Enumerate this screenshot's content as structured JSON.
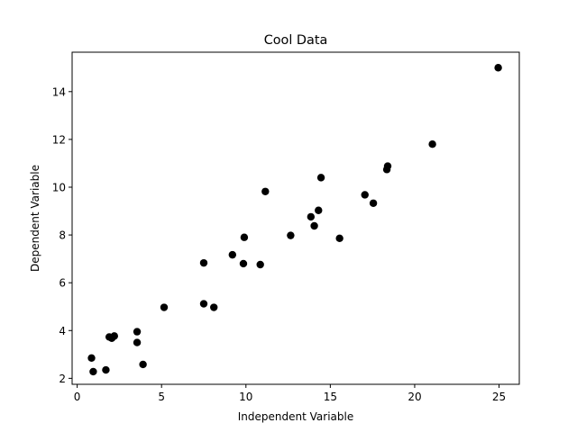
{
  "chart_data": {
    "type": "scatter",
    "title": "Cool Data",
    "xlabel": "Independent Variable",
    "ylabel": "Dependent Variable",
    "xlim": [
      -0.3,
      26.2
    ],
    "ylim": [
      1.75,
      15.65
    ],
    "xticks": [
      0,
      5,
      10,
      15,
      20,
      25
    ],
    "yticks": [
      2,
      4,
      6,
      8,
      10,
      12,
      14
    ],
    "grid": false,
    "marker_color": "#000000",
    "points": [
      {
        "x": 0.85,
        "y": 2.85
      },
      {
        "x": 0.95,
        "y": 2.28
      },
      {
        "x": 1.7,
        "y": 2.35
      },
      {
        "x": 1.9,
        "y": 3.73
      },
      {
        "x": 2.05,
        "y": 3.68
      },
      {
        "x": 2.2,
        "y": 3.77
      },
      {
        "x": 3.55,
        "y": 3.95
      },
      {
        "x": 3.55,
        "y": 3.5
      },
      {
        "x": 3.9,
        "y": 2.58
      },
      {
        "x": 5.15,
        "y": 4.97
      },
      {
        "x": 7.5,
        "y": 6.83
      },
      {
        "x": 7.5,
        "y": 5.12
      },
      {
        "x": 8.1,
        "y": 4.97
      },
      {
        "x": 9.2,
        "y": 7.17
      },
      {
        "x": 9.85,
        "y": 6.8
      },
      {
        "x": 9.9,
        "y": 7.9
      },
      {
        "x": 10.85,
        "y": 6.76
      },
      {
        "x": 11.15,
        "y": 9.82
      },
      {
        "x": 12.65,
        "y": 7.98
      },
      {
        "x": 13.85,
        "y": 8.76
      },
      {
        "x": 14.05,
        "y": 8.38
      },
      {
        "x": 14.3,
        "y": 9.03
      },
      {
        "x": 14.45,
        "y": 10.4
      },
      {
        "x": 15.55,
        "y": 7.86
      },
      {
        "x": 17.05,
        "y": 9.68
      },
      {
        "x": 17.55,
        "y": 9.33
      },
      {
        "x": 18.35,
        "y": 10.74
      },
      {
        "x": 18.4,
        "y": 10.88
      },
      {
        "x": 21.05,
        "y": 11.8
      },
      {
        "x": 24.95,
        "y": 15.0
      }
    ]
  }
}
